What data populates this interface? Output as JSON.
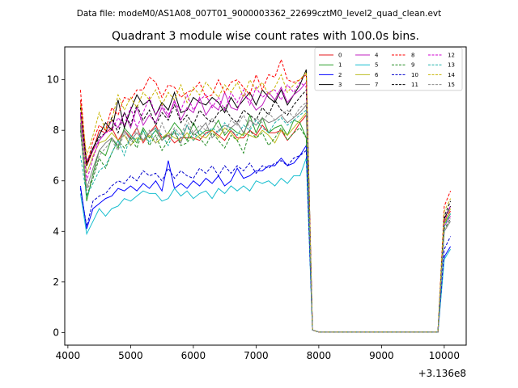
{
  "figure": {
    "suptitle": "Data file: modeM0/AS1A08_007T01_9000003362_22699cztM0_level2_quad_clean.evt"
  },
  "chart_data": {
    "type": "line",
    "title": "Quadrant 3 module wise count rates with 100.0s bins.",
    "xlabel": "",
    "ylabel": "",
    "x_offset_label": "+3.136e8",
    "xlim": [
      3950,
      10350
    ],
    "ylim": [
      -0.5,
      11.3
    ],
    "xticks": [
      4000,
      5000,
      6000,
      7000,
      8000,
      9000,
      10000
    ],
    "xtick_labels": [
      "4000",
      "5000",
      "6000",
      "7000",
      "8000",
      "9000",
      "10000"
    ],
    "yticks": [
      0,
      2,
      4,
      6,
      8,
      10
    ],
    "ytick_labels": [
      "0",
      "2",
      "4",
      "6",
      "8",
      "10"
    ],
    "legend_loc": "upper right",
    "legend_ncol": 4,
    "x": [
      4200,
      4300,
      4400,
      4500,
      4600,
      4700,
      4800,
      4900,
      5000,
      5100,
      5200,
      5300,
      5400,
      5500,
      5600,
      5700,
      5800,
      5900,
      6000,
      6100,
      6200,
      6300,
      6400,
      6500,
      6600,
      6700,
      6800,
      6900,
      7000,
      7100,
      7200,
      7300,
      7400,
      7500,
      7600,
      7700,
      7800,
      7900,
      8000,
      8100,
      8200,
      8300,
      8400,
      8500,
      8600,
      8700,
      8800,
      8900,
      9000,
      9100,
      9200,
      9300,
      9400,
      9500,
      9600,
      9700,
      9800,
      9900,
      10000,
      10100
    ],
    "series": [
      {
        "name": "0",
        "color": "#e41a1c",
        "dash": false,
        "values": [
          9.2,
          6.6,
          7.2,
          8.0,
          7.9,
          8.1,
          7.6,
          8.0,
          7.7,
          8.1,
          7.5,
          7.9,
          8.2,
          7.7,
          7.8,
          7.5,
          7.7,
          7.7,
          7.7,
          7.6,
          7.9,
          8.0,
          7.8,
          7.6,
          8.0,
          7.7,
          7.7,
          8.0,
          7.8,
          8.2,
          7.9,
          7.9,
          8.0,
          7.6,
          7.9,
          8.3,
          8.6,
          0.1,
          0.02,
          0.02,
          0.02,
          0.02,
          0.02,
          0.02,
          0.02,
          0.02,
          0.02,
          0.02,
          0.02,
          0.02,
          0.02,
          0.02,
          0.02,
          0.02,
          0.02,
          0.02,
          0.02,
          0.02,
          4.4,
          4.8
        ]
      },
      {
        "name": "1",
        "color": "#2ca02c",
        "dash": false,
        "values": [
          8.2,
          5.2,
          6.3,
          7.2,
          7.0,
          7.7,
          7.3,
          8.1,
          7.8,
          7.5,
          8.1,
          7.7,
          8.0,
          7.6,
          7.9,
          8.3,
          8.0,
          7.6,
          8.3,
          7.8,
          8.0,
          8.0,
          8.4,
          7.8,
          8.1,
          7.9,
          7.8,
          8.6,
          7.9,
          8.5,
          7.9,
          8.1,
          8.2,
          7.8,
          8.4,
          8.3,
          7.7,
          0.1,
          0.02,
          0.02,
          0.02,
          0.02,
          0.02,
          0.02,
          0.02,
          0.02,
          0.02,
          0.02,
          0.02,
          0.02,
          0.02,
          0.02,
          0.02,
          0.02,
          0.02,
          0.02,
          0.02,
          0.02,
          4.3,
          4.7
        ]
      },
      {
        "name": "2",
        "color": "#0000ff",
        "dash": false,
        "values": [
          5.8,
          4.1,
          4.9,
          5.1,
          5.3,
          5.4,
          5.7,
          5.6,
          5.8,
          5.6,
          5.9,
          5.7,
          6.0,
          5.6,
          6.8,
          5.7,
          5.9,
          5.7,
          6.0,
          5.8,
          6.1,
          5.9,
          6.2,
          5.8,
          6.0,
          6.5,
          6.1,
          6.2,
          6.4,
          6.4,
          6.6,
          6.6,
          6.9,
          6.6,
          6.7,
          7.0,
          7.4,
          0.1,
          0.02,
          0.02,
          0.02,
          0.02,
          0.02,
          0.02,
          0.02,
          0.02,
          0.02,
          0.02,
          0.02,
          0.02,
          0.02,
          0.02,
          0.02,
          0.02,
          0.02,
          0.02,
          0.02,
          0.02,
          3.0,
          3.4
        ]
      },
      {
        "name": "3",
        "color": "#000000",
        "dash": false,
        "values": [
          8.6,
          6.7,
          7.3,
          7.8,
          8.3,
          8.0,
          9.2,
          8.1,
          8.8,
          9.4,
          9.0,
          9.2,
          8.6,
          9.1,
          8.8,
          9.5,
          8.7,
          8.8,
          9.3,
          9.1,
          9.0,
          9.3,
          9.1,
          8.7,
          9.3,
          8.9,
          9.2,
          9.5,
          9.0,
          9.6,
          9.3,
          9.1,
          9.6,
          9.0,
          9.4,
          9.8,
          10.4,
          0.1,
          0.02,
          0.02,
          0.02,
          0.02,
          0.02,
          0.02,
          0.02,
          0.02,
          0.02,
          0.02,
          0.02,
          0.02,
          0.02,
          0.02,
          0.02,
          0.02,
          0.02,
          0.02,
          0.02,
          0.02,
          4.5,
          5.0
        ]
      },
      {
        "name": "4",
        "color": "#c020c0",
        "dash": false,
        "values": [
          8.6,
          6.8,
          7.2,
          7.6,
          7.9,
          8.4,
          8.1,
          8.7,
          8.1,
          8.9,
          8.2,
          8.6,
          8.3,
          8.9,
          8.5,
          9.2,
          8.4,
          8.9,
          8.7,
          9.3,
          8.6,
          9.0,
          8.8,
          9.5,
          8.9,
          8.8,
          9.4,
          9.2,
          8.8,
          9.0,
          9.5,
          9.2,
          9.7,
          9.1,
          9.4,
          9.6,
          9.9,
          0.1,
          0.02,
          0.02,
          0.02,
          0.02,
          0.02,
          0.02,
          0.02,
          0.02,
          0.02,
          0.02,
          0.02,
          0.02,
          0.02,
          0.02,
          0.02,
          0.02,
          0.02,
          0.02,
          0.02,
          0.02,
          4.2,
          4.6
        ]
      },
      {
        "name": "5",
        "color": "#17becf",
        "dash": false,
        "values": [
          5.5,
          3.9,
          4.4,
          4.9,
          4.6,
          4.9,
          5.0,
          5.3,
          5.2,
          5.4,
          5.6,
          5.5,
          5.5,
          5.2,
          5.3,
          5.7,
          5.4,
          5.6,
          5.3,
          5.5,
          5.6,
          5.3,
          5.7,
          5.5,
          5.8,
          5.6,
          5.8,
          5.6,
          6.0,
          5.9,
          6.0,
          5.8,
          6.1,
          5.9,
          6.2,
          6.2,
          6.9,
          0.1,
          0.02,
          0.02,
          0.02,
          0.02,
          0.02,
          0.02,
          0.02,
          0.02,
          0.02,
          0.02,
          0.02,
          0.02,
          0.02,
          0.02,
          0.02,
          0.02,
          0.02,
          0.02,
          0.02,
          0.02,
          2.9,
          3.3
        ]
      },
      {
        "name": "6",
        "color": "#bcbd22",
        "dash": false,
        "values": [
          8.5,
          6.3,
          7.0,
          7.5,
          7.6,
          7.9,
          7.6,
          7.8,
          7.4,
          7.7,
          7.6,
          7.8,
          7.5,
          7.7,
          7.9,
          7.7,
          7.6,
          7.9,
          7.6,
          7.8,
          7.7,
          8.0,
          7.7,
          8.1,
          7.9,
          7.6,
          7.9,
          7.8,
          7.7,
          8.0,
          7.8,
          7.5,
          8.0,
          7.8,
          8.1,
          8.4,
          8.7,
          0.1,
          0.02,
          0.02,
          0.02,
          0.02,
          0.02,
          0.02,
          0.02,
          0.02,
          0.02,
          0.02,
          0.02,
          0.02,
          0.02,
          0.02,
          0.02,
          0.02,
          0.02,
          0.02,
          0.02,
          0.02,
          4.3,
          4.9
        ]
      },
      {
        "name": "7",
        "color": "#7f7f7f",
        "dash": false,
        "values": [
          8.3,
          5.7,
          6.5,
          7.2,
          7.5,
          7.7,
          7.4,
          8.0,
          7.6,
          7.9,
          7.6,
          7.9,
          8.1,
          7.6,
          7.8,
          7.9,
          7.5,
          8.2,
          7.8,
          8.0,
          8.3,
          7.7,
          8.0,
          8.2,
          8.1,
          8.3,
          7.9,
          8.4,
          8.2,
          8.5,
          8.3,
          8.4,
          8.6,
          8.3,
          8.5,
          8.7,
          9.0,
          0.1,
          0.02,
          0.02,
          0.02,
          0.02,
          0.02,
          0.02,
          0.02,
          0.02,
          0.02,
          0.02,
          0.02,
          0.02,
          0.02,
          0.02,
          0.02,
          0.02,
          0.02,
          0.02,
          0.02,
          0.02,
          4.0,
          4.4
        ]
      },
      {
        "name": "8",
        "color": "#ff0000",
        "dash": true,
        "values": [
          9.6,
          6.6,
          7.6,
          8.2,
          8.0,
          8.9,
          8.6,
          9.3,
          9.2,
          9.6,
          9.6,
          10.1,
          9.9,
          9.3,
          9.8,
          9.7,
          9.3,
          9.5,
          9.6,
          9.9,
          9.3,
          9.4,
          10.0,
          9.5,
          9.9,
          10.0,
          9.7,
          9.4,
          10.2,
          9.6,
          10.2,
          10.1,
          10.8,
          10.0,
          9.9,
          10.0,
          10.2,
          0.1,
          0.02,
          0.02,
          0.02,
          0.02,
          0.02,
          0.02,
          0.02,
          0.02,
          0.02,
          0.02,
          0.02,
          0.02,
          0.02,
          0.02,
          0.02,
          0.02,
          0.02,
          0.02,
          0.02,
          0.02,
          5.0,
          5.6
        ]
      },
      {
        "name": "9",
        "color": "#228b22",
        "dash": true,
        "values": [
          8.0,
          5.4,
          6.1,
          6.9,
          6.5,
          7.1,
          7.6,
          7.3,
          7.7,
          7.3,
          8.0,
          7.4,
          7.8,
          7.2,
          7.6,
          8.0,
          7.4,
          7.5,
          7.9,
          7.7,
          7.4,
          7.9,
          7.6,
          7.3,
          7.8,
          7.6,
          7.1,
          8.0,
          7.7,
          7.9,
          7.4,
          7.7,
          8.1,
          7.6,
          7.9,
          8.1,
          7.7,
          0.1,
          0.02,
          0.02,
          0.02,
          0.02,
          0.02,
          0.02,
          0.02,
          0.02,
          0.02,
          0.02,
          0.02,
          0.02,
          0.02,
          0.02,
          0.02,
          0.02,
          0.02,
          0.02,
          0.02,
          0.02,
          4.1,
          4.5
        ]
      },
      {
        "name": "10",
        "color": "#0000cd",
        "dash": true,
        "values": [
          5.7,
          4.2,
          5.2,
          5.4,
          5.5,
          5.8,
          6.0,
          5.9,
          6.2,
          6.0,
          6.4,
          6.2,
          6.3,
          6.0,
          6.5,
          6.1,
          6.4,
          6.2,
          6.1,
          6.5,
          6.3,
          6.6,
          6.2,
          6.6,
          6.3,
          6.6,
          6.4,
          6.7,
          6.3,
          6.6,
          6.5,
          6.7,
          6.8,
          6.6,
          6.9,
          7.0,
          7.2,
          0.1,
          0.02,
          0.02,
          0.02,
          0.02,
          0.02,
          0.02,
          0.02,
          0.02,
          0.02,
          0.02,
          0.02,
          0.02,
          0.02,
          0.02,
          0.02,
          0.02,
          0.02,
          0.02,
          0.02,
          0.02,
          3.3,
          3.8
        ]
      },
      {
        "name": "11",
        "color": "#000000",
        "dash": true,
        "values": [
          8.9,
          6.6,
          7.3,
          7.7,
          7.9,
          8.5,
          7.9,
          8.7,
          8.2,
          9.0,
          8.4,
          8.8,
          8.2,
          8.7,
          8.4,
          9.0,
          8.3,
          8.6,
          8.2,
          8.8,
          8.5,
          8.3,
          8.7,
          8.9,
          8.5,
          8.3,
          8.8,
          8.6,
          8.4,
          8.9,
          8.6,
          9.2,
          8.8,
          8.6,
          9.0,
          9.3,
          9.6,
          0.1,
          0.02,
          0.02,
          0.02,
          0.02,
          0.02,
          0.02,
          0.02,
          0.02,
          0.02,
          0.02,
          0.02,
          0.02,
          0.02,
          0.02,
          0.02,
          0.02,
          0.02,
          0.02,
          0.02,
          0.02,
          4.6,
          5.2
        ]
      },
      {
        "name": "12",
        "color": "#d000d0",
        "dash": true,
        "values": [
          8.7,
          6.0,
          6.9,
          7.6,
          7.9,
          8.0,
          8.5,
          8.2,
          8.9,
          8.1,
          8.7,
          9.3,
          8.6,
          9.0,
          8.6,
          9.1,
          8.8,
          9.4,
          8.8,
          9.2,
          9.4,
          8.9,
          9.3,
          8.8,
          9.5,
          9.1,
          9.6,
          9.0,
          9.7,
          9.3,
          9.5,
          9.6,
          9.2,
          9.8,
          9.5,
          9.9,
          9.7,
          0.1,
          0.02,
          0.02,
          0.02,
          0.02,
          0.02,
          0.02,
          0.02,
          0.02,
          0.02,
          0.02,
          0.02,
          0.02,
          0.02,
          0.02,
          0.02,
          0.02,
          0.02,
          0.02,
          0.02,
          0.02,
          4.4,
          5.0
        ]
      },
      {
        "name": "13",
        "color": "#20b2aa",
        "dash": true,
        "values": [
          7.0,
          5.4,
          5.9,
          6.4,
          6.6,
          7.1,
          7.6,
          7.0,
          7.8,
          7.6,
          8.0,
          7.5,
          8.1,
          7.8,
          7.4,
          8.0,
          7.7,
          8.2,
          7.6,
          8.0,
          7.8,
          8.1,
          7.9,
          8.3,
          8.0,
          7.8,
          8.2,
          8.0,
          8.4,
          8.1,
          7.9,
          8.3,
          8.5,
          8.2,
          8.4,
          8.6,
          8.8,
          0.1,
          0.02,
          0.02,
          0.02,
          0.02,
          0.02,
          0.02,
          0.02,
          0.02,
          0.02,
          0.02,
          0.02,
          0.02,
          0.02,
          0.02,
          0.02,
          0.02,
          0.02,
          0.02,
          0.02,
          0.02,
          4.2,
          4.7
        ]
      },
      {
        "name": "14",
        "color": "#c8b400",
        "dash": true,
        "values": [
          9.0,
          7.0,
          7.8,
          8.7,
          8.0,
          8.4,
          9.4,
          8.8,
          9.3,
          8.9,
          9.5,
          9.2,
          9.6,
          9.0,
          9.5,
          9.2,
          9.8,
          9.1,
          9.7,
          9.4,
          9.9,
          9.6,
          9.3,
          9.8,
          9.5,
          9.9,
          9.3,
          10.0,
          9.6,
          9.9,
          9.4,
          9.7,
          10.2,
          9.5,
          9.8,
          10.0,
          10.3,
          0.1,
          0.02,
          0.02,
          0.02,
          0.02,
          0.02,
          0.02,
          0.02,
          0.02,
          0.02,
          0.02,
          0.02,
          0.02,
          0.02,
          0.02,
          0.02,
          0.02,
          0.02,
          0.02,
          0.02,
          0.02,
          4.8,
          5.3
        ]
      },
      {
        "name": "15",
        "color": "#8c8c8c",
        "dash": true,
        "values": [
          8.1,
          5.6,
          6.2,
          7.0,
          7.3,
          7.6,
          7.2,
          7.9,
          7.4,
          8.1,
          7.6,
          8.0,
          7.5,
          8.3,
          7.7,
          8.1,
          7.8,
          8.4,
          7.9,
          8.2,
          8.0,
          8.5,
          8.1,
          7.9,
          8.4,
          8.2,
          8.6,
          8.1,
          8.5,
          8.3,
          8.7,
          8.4,
          8.6,
          8.8,
          8.5,
          8.9,
          9.1,
          0.1,
          0.02,
          0.02,
          0.02,
          0.02,
          0.02,
          0.02,
          0.02,
          0.02,
          0.02,
          0.02,
          0.02,
          0.02,
          0.02,
          0.02,
          0.02,
          0.02,
          0.02,
          0.02,
          0.02,
          0.02,
          4.0,
          4.5
        ]
      }
    ]
  }
}
